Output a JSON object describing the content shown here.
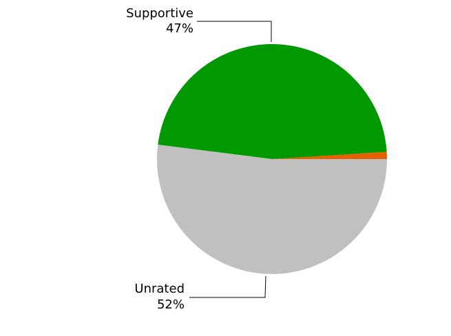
{
  "chart_data": {
    "type": "pie",
    "slices": [
      {
        "label": "",
        "value": 1.0,
        "color": "#e66100",
        "display_label": "",
        "display_pct": ""
      },
      {
        "label": "Supportive",
        "value": 47.0,
        "color": "#009900",
        "display_label": "Supportive",
        "display_pct": "47%"
      },
      {
        "label": "Unrated",
        "value": 52.0,
        "color": "#c0c0c0",
        "display_label": "Unrated",
        "display_pct": "52%"
      }
    ],
    "start_angle_deg": 0,
    "direction": "counterclockwise",
    "legend": "none"
  }
}
